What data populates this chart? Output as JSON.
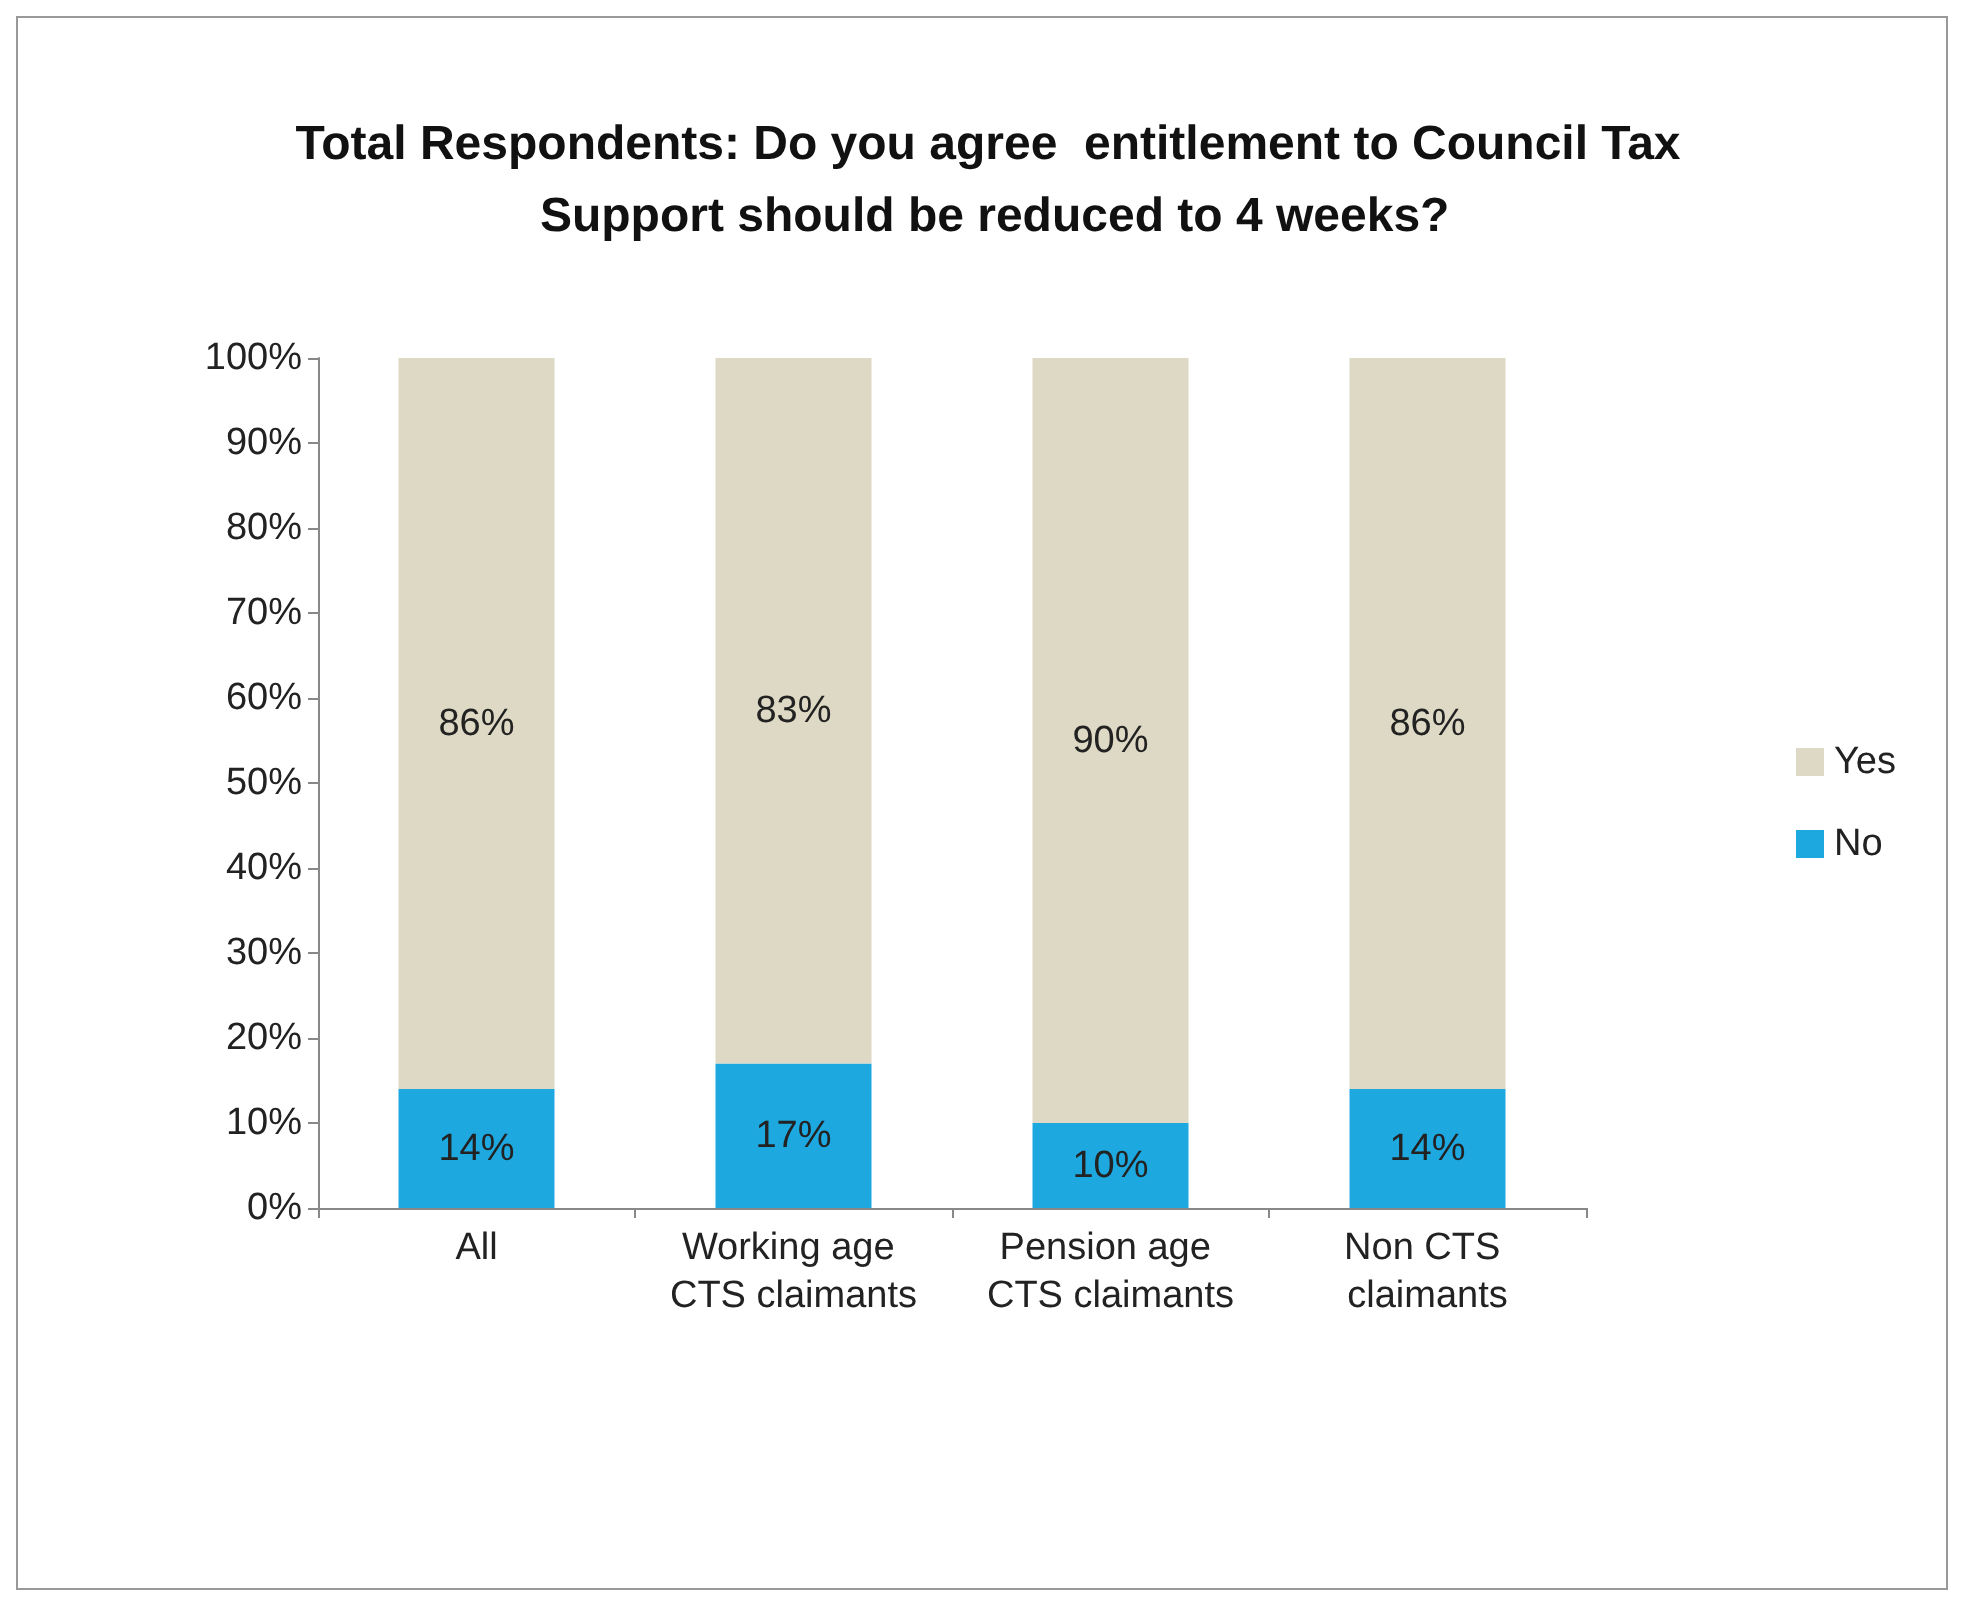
{
  "chart_data": {
    "type": "bar",
    "stacked": true,
    "title": "Total Respondents: Do you agree  entitlement to Council Tax Support should be reduced to 4 weeks?",
    "categories": [
      "All",
      "Working age CTS claimants",
      "Pension age CTS claimants",
      "Non CTS claimants"
    ],
    "series": [
      {
        "name": "No",
        "color": "#1ea8e0",
        "values": [
          14,
          17,
          10,
          14
        ],
        "value_labels": [
          "14%",
          "17%",
          "10%",
          "14%"
        ]
      },
      {
        "name": "Yes",
        "color": "#ddd9c4",
        "values": [
          86,
          83,
          90,
          86
        ],
        "value_labels": [
          "86%",
          "83%",
          "90%",
          "86%"
        ]
      }
    ],
    "ylim": [
      0,
      100
    ],
    "yticks": [
      {
        "value": 0,
        "label": "0%"
      },
      {
        "value": 10,
        "label": "10%"
      },
      {
        "value": 20,
        "label": "20%"
      },
      {
        "value": 30,
        "label": "30%"
      },
      {
        "value": 40,
        "label": "40%"
      },
      {
        "value": 50,
        "label": "50%"
      },
      {
        "value": 60,
        "label": "60%"
      },
      {
        "value": 70,
        "label": "70%"
      },
      {
        "value": 80,
        "label": "80%"
      },
      {
        "value": 90,
        "label": "90%"
      },
      {
        "value": 100,
        "label": "100%"
      }
    ],
    "grid": false,
    "legend": "right"
  }
}
